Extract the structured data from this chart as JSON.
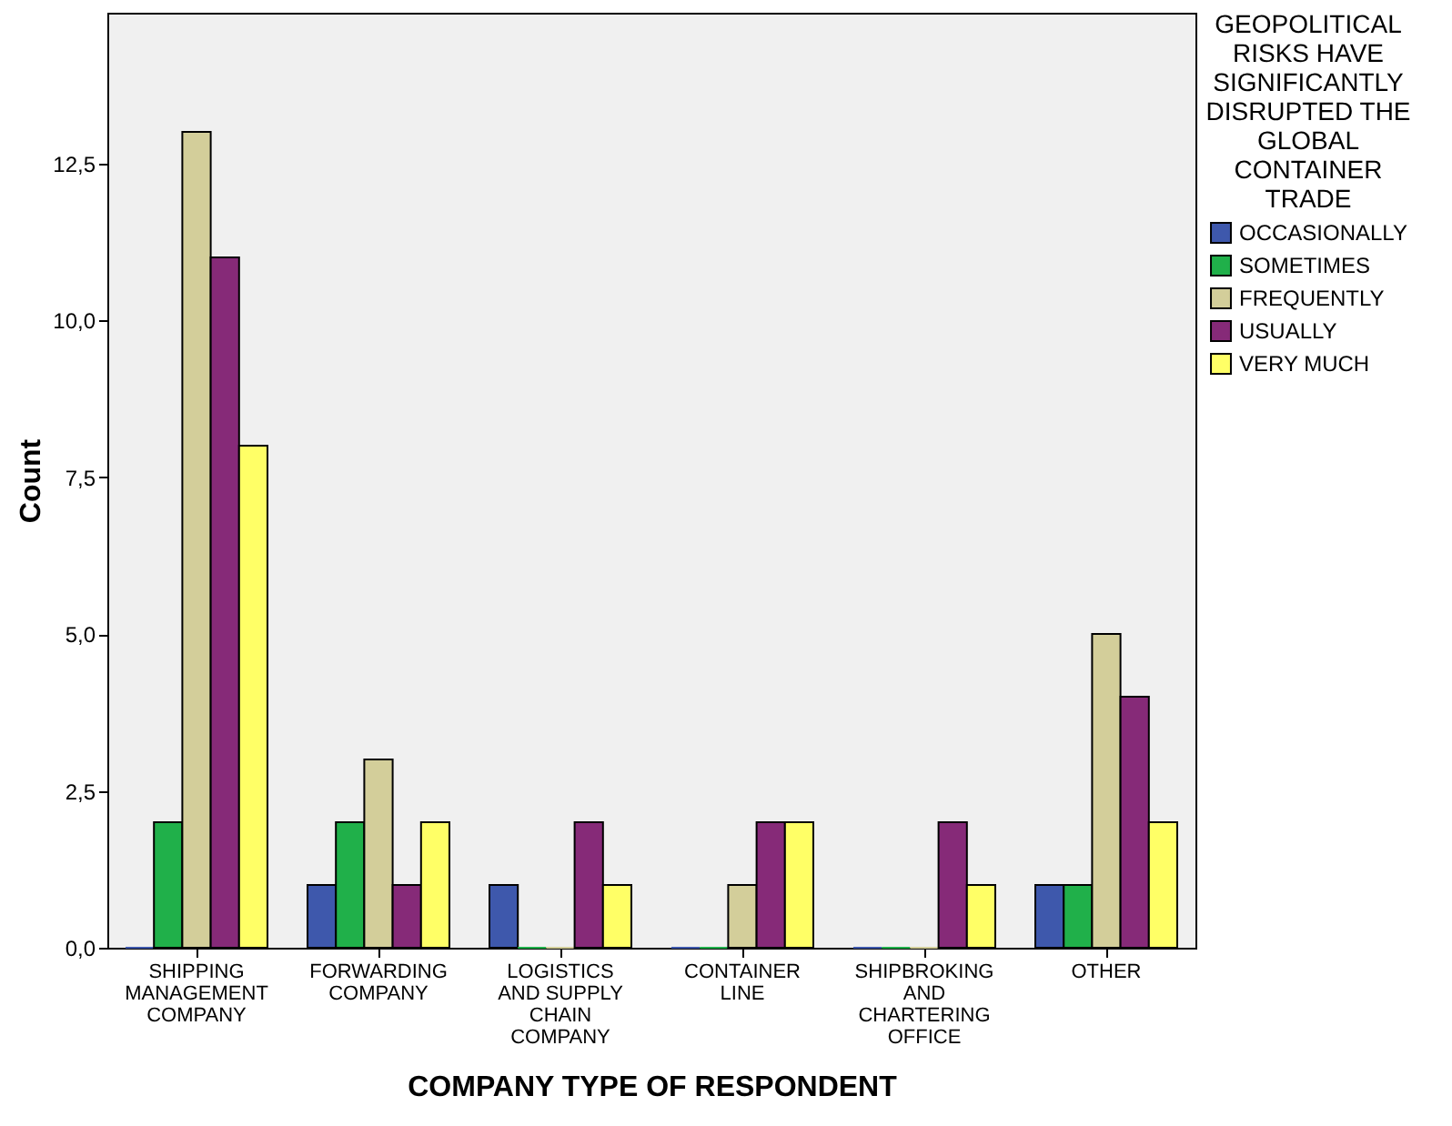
{
  "chart_data": {
    "type": "bar",
    "xlabel": "COMPANY TYPE OF RESPONDENT",
    "ylabel": "Count",
    "legend_title": "GEOPOLITICAL RISKS HAVE SIGNIFICANTLY DISRUPTED THE GLOBAL CONTAINER TRADE",
    "categories": [
      "SHIPPING MANAGEMENT COMPANY",
      "FORWARDING COMPANY",
      "LOGISTICS AND SUPPLY CHAIN COMPANY",
      "CONTAINER LINE",
      "SHIPBROKING AND CHARTERING OFFICE",
      "OTHER"
    ],
    "series": [
      {
        "name": "OCCASIONALLY",
        "color": "#3e58ac",
        "values": [
          0,
          1,
          1,
          0,
          0,
          1
        ]
      },
      {
        "name": "SOMETIMES",
        "color": "#20b04a",
        "values": [
          2,
          2,
          0,
          0,
          0,
          1
        ]
      },
      {
        "name": "FREQUENTLY",
        "color": "#d3ce9a",
        "values": [
          13,
          3,
          0,
          1,
          0,
          5
        ]
      },
      {
        "name": "USUALLY",
        "color": "#862a78",
        "values": [
          11,
          1,
          2,
          2,
          2,
          4
        ]
      },
      {
        "name": "VERY MUCH",
        "color": "#ffff66",
        "values": [
          8,
          2,
          1,
          2,
          1,
          2
        ]
      }
    ],
    "ylim": [
      0,
      14.9
    ],
    "yticks": [
      {
        "value": 0,
        "label": "0,0"
      },
      {
        "value": 2.5,
        "label": "2,5"
      },
      {
        "value": 5,
        "label": "5,0"
      },
      {
        "value": 7.5,
        "label": "7,5"
      },
      {
        "value": 10,
        "label": "10,0"
      },
      {
        "value": 12.5,
        "label": "12,5"
      }
    ],
    "grid": false,
    "legend": "right"
  }
}
